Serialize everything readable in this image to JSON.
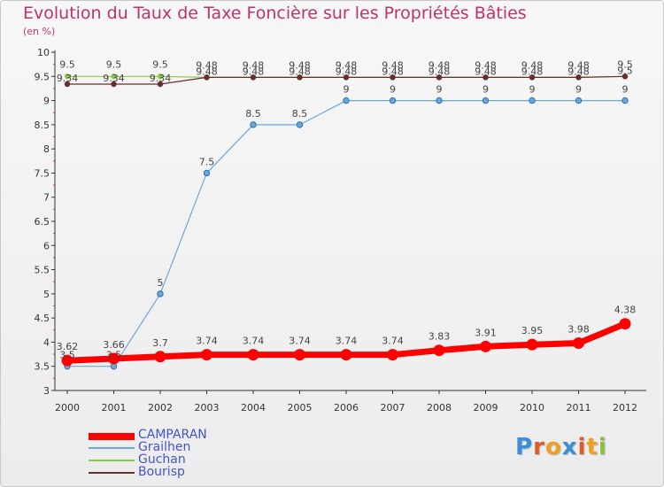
{
  "chart_data": {
    "type": "line",
    "title": "Evolution du Taux de Taxe Foncière sur les Propriétés Bâties",
    "subtitle": "(en %)",
    "x": [
      "2000",
      "2001",
      "2002",
      "2003",
      "2004",
      "2005",
      "2006",
      "2007",
      "2008",
      "2009",
      "2010",
      "2011",
      "2012"
    ],
    "ylim": [
      3,
      10
    ],
    "yticks": [
      "3",
      "3.5",
      "4",
      "4.5",
      "5",
      "5.5",
      "6",
      "6.5",
      "7",
      "7.5",
      "8",
      "8.5",
      "9",
      "9.5",
      "10"
    ],
    "grid": false,
    "series": [
      {
        "name": "Guchan",
        "color": "#88cc44",
        "values": [
          9.5,
          9.5,
          9.5,
          9.48,
          9.48,
          9.48,
          9.48,
          9.48,
          9.48,
          9.48,
          9.48,
          9.48,
          9.5
        ],
        "labels": [
          "9.5",
          "9.5",
          "9.5",
          "9.48",
          "9.48",
          "9.48",
          "9.48",
          "9.48",
          "9.48",
          "9.48",
          "9.48",
          "9.48",
          "9.5"
        ]
      },
      {
        "name": "Bourisp",
        "color": "#6b2c2c",
        "values": [
          9.34,
          9.34,
          9.34,
          9.48,
          9.48,
          9.48,
          9.48,
          9.48,
          9.48,
          9.48,
          9.48,
          9.48,
          9.5
        ],
        "labels": [
          "9.34",
          "9.34",
          "9.34",
          "9.48",
          "9.48",
          "9.48",
          "9.48",
          "9.48",
          "9.48",
          "9.48",
          "9.48",
          "9.48",
          "9.5"
        ]
      },
      {
        "name": "Grailhen",
        "color": "#6ea6d8",
        "values": [
          3.5,
          3.5,
          5,
          7.5,
          8.5,
          8.5,
          9,
          9,
          9,
          9,
          9,
          9,
          9
        ],
        "labels": [
          "3.5",
          "3.5",
          "5",
          "7.5",
          "8.5",
          "8.5",
          "9",
          "9",
          "9",
          "9",
          "9",
          "9",
          "9"
        ]
      },
      {
        "name": "CAMPARAN",
        "color": "#ff0000",
        "values": [
          3.62,
          3.66,
          3.7,
          3.74,
          3.74,
          3.74,
          3.74,
          3.74,
          3.83,
          3.91,
          3.95,
          3.98,
          4.38
        ],
        "labels": [
          "3.62",
          "3.66",
          "3.7",
          "3.74",
          "3.74",
          "3.74",
          "3.74",
          "3.74",
          "3.83",
          "3.91",
          "3.95",
          "3.98",
          "4.38"
        ]
      }
    ],
    "legend": [
      {
        "name": "CAMPARAN",
        "color": "#ff0000"
      },
      {
        "name": "Grailhen",
        "color": "#6ea6d8"
      },
      {
        "name": "Guchan",
        "color": "#88cc44"
      },
      {
        "name": "Bourisp",
        "color": "#6b2c2c"
      }
    ]
  },
  "logo": {
    "letters": [
      "P",
      "r",
      "o",
      "x",
      "i",
      "t",
      "i"
    ],
    "colors": [
      "#3a8fd9",
      "#e05a2a",
      "#f0a020",
      "#3a8fd9",
      "#e05a2a",
      "#f0a020",
      "#8ac03a"
    ]
  }
}
